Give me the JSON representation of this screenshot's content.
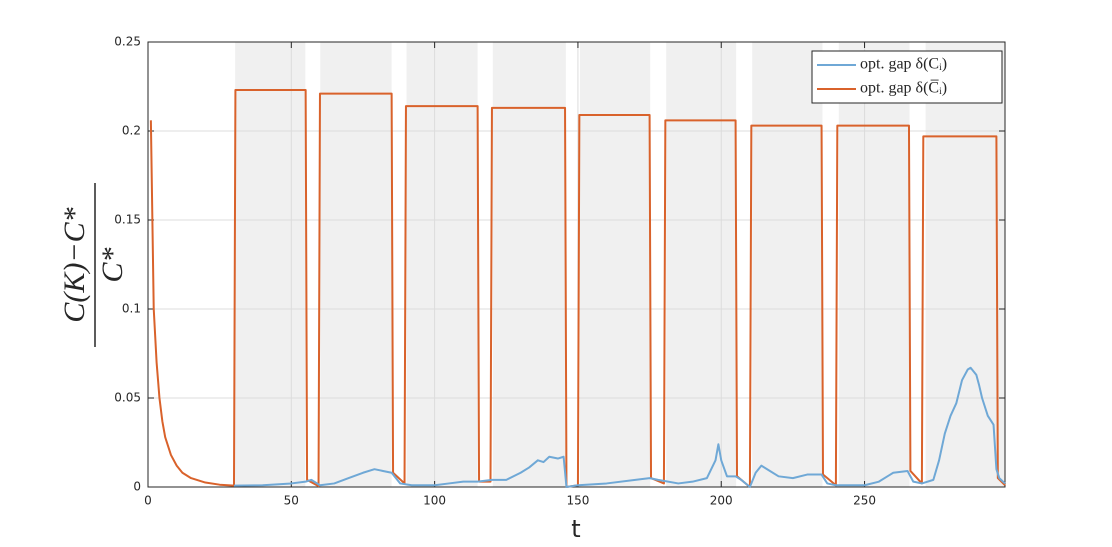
{
  "chart_data": {
    "type": "line",
    "xlabel": "t",
    "ylabel": {
      "numerator": "C(K)−C*",
      "denominator": "C*"
    },
    "xlim": [
      0,
      299
    ],
    "ylim": [
      0,
      0.25
    ],
    "xticks": [
      0,
      50,
      100,
      150,
      200,
      250
    ],
    "yticks": [
      0,
      0.05,
      0.1,
      0.15,
      0.2,
      0.25
    ],
    "grid": true,
    "legend": "top-right",
    "shaded_intervals": [
      [
        30.4,
        54.9
      ],
      [
        60.1,
        85
      ],
      [
        90.2,
        115
      ],
      [
        120.3,
        145.8
      ],
      [
        150.7,
        175.2
      ],
      [
        180.8,
        205.2
      ],
      [
        210.8,
        235.3
      ],
      [
        241,
        265.7
      ],
      [
        271.3,
        299
      ]
    ],
    "series": [
      {
        "name": "opt. gap δ(Cᵢ)",
        "color": "#6fa8d6",
        "x": [
          30,
          40,
          50,
          55,
          57,
          60,
          65,
          70,
          75,
          79,
          82,
          85,
          88,
          92,
          100,
          105,
          110,
          115,
          120,
          125,
          130,
          133,
          136,
          138,
          140,
          143,
          145,
          146,
          150,
          160,
          170,
          175,
          178,
          185,
          190,
          195,
          198,
          199,
          200,
          202,
          205,
          207,
          210,
          212,
          214,
          217,
          220,
          225,
          230,
          235,
          237,
          240,
          250,
          255,
          260,
          265,
          267,
          270,
          274,
          276,
          278,
          280,
          282,
          284,
          286,
          287,
          289,
          290,
          291,
          293,
          295,
          296,
          297,
          299
        ],
        "values": [
          0.0008,
          0.001,
          0.002,
          0.003,
          0.004,
          0.001,
          0.002,
          0.005,
          0.008,
          0.01,
          0.009,
          0.008,
          0.002,
          0.001,
          0.001,
          0.002,
          0.003,
          0.003,
          0.004,
          0.004,
          0.008,
          0.011,
          0.015,
          0.014,
          0.017,
          0.016,
          0.017,
          0,
          0.001,
          0.002,
          0.004,
          0.005,
          0.004,
          0.002,
          0.003,
          0.005,
          0.015,
          0.024,
          0.015,
          0.006,
          0.006,
          0.004,
          0,
          0.008,
          0.012,
          0.009,
          0.006,
          0.005,
          0.007,
          0.007,
          0.002,
          0.001,
          0.001,
          0.003,
          0.008,
          0.009,
          0.003,
          0.002,
          0.004,
          0.015,
          0.03,
          0.04,
          0.047,
          0.06,
          0.066,
          0.067,
          0.063,
          0.057,
          0.05,
          0.04,
          0.035,
          0.01,
          0.005,
          0.002
        ]
      },
      {
        "name": "opt. gap δ(C̅ᵢ)",
        "color": "#d9622b",
        "x": [
          1,
          2,
          3,
          4,
          5,
          6,
          8,
          10,
          12,
          15,
          20,
          25,
          30,
          30.5,
          55,
          55.5,
          59.5,
          60,
          85,
          85.5,
          89.5,
          90,
          115,
          115.5,
          119.5,
          120,
          145.5,
          146,
          150,
          150.5,
          175,
          175.5,
          180,
          180.5,
          205,
          205.5,
          210,
          210.5,
          235,
          235.5,
          240,
          240.5,
          265.5,
          266,
          270,
          270.5,
          296,
          296.5,
          299
        ],
        "values": [
          0.206,
          0.1,
          0.07,
          0.05,
          0.037,
          0.028,
          0.018,
          0.012,
          0.008,
          0.005,
          0.0025,
          0.0013,
          0.0008,
          0.223,
          0.223,
          0.004,
          0.0005,
          0.221,
          0.221,
          0.008,
          0.002,
          0.214,
          0.214,
          0.003,
          0.003,
          0.213,
          0.213,
          0,
          0.001,
          0.209,
          0.209,
          0.005,
          0.002,
          0.206,
          0.206,
          0.006,
          0,
          0.203,
          0.203,
          0.007,
          0.001,
          0.203,
          0.203,
          0.009,
          0.002,
          0.197,
          0.197,
          0.005,
          0.001
        ]
      }
    ]
  }
}
